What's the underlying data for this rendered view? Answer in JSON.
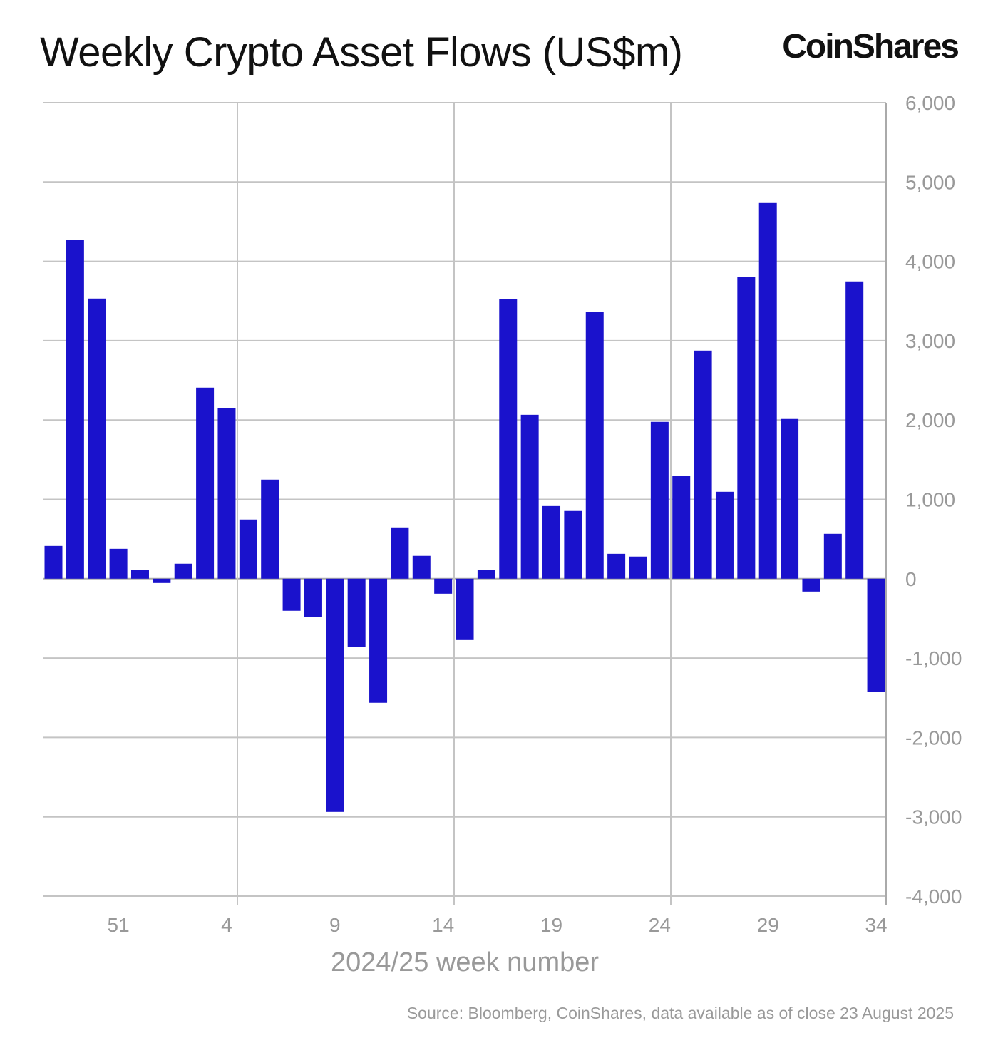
{
  "chart_data": {
    "type": "bar",
    "title": "Weekly Crypto Asset Flows (US$m)",
    "brand": "CoinShares",
    "source": "Source: Bloomberg, CoinShares, data available as of close 23 August 2025",
    "xlabel": "2024/25 week number",
    "ylabel": "",
    "ylim": [
      -4000,
      6000
    ],
    "yticks": [
      6000,
      5000,
      4000,
      3000,
      2000,
      1000,
      0,
      -1000,
      -2000,
      -3000,
      -4000
    ],
    "ytick_labels": [
      "6,000",
      "5,000",
      "4,000",
      "3,000",
      "2,000",
      "1,000",
      "0",
      "-1,000",
      "-2,000",
      "-3,000",
      "-4,000"
    ],
    "xtick_labels": [
      "51",
      "4",
      "9",
      "14",
      "19",
      "24",
      "29",
      "34"
    ],
    "y_axis_position": "right",
    "grid": true,
    "bar_color": "#1a12cc",
    "categories": [
      "48",
      "49",
      "50",
      "51",
      "52",
      "1",
      "2",
      "3",
      "4",
      "5",
      "6",
      "7",
      "8",
      "9",
      "10",
      "11",
      "12",
      "13",
      "14",
      "15",
      "16",
      "17",
      "18",
      "19",
      "20",
      "21",
      "22",
      "23",
      "24",
      "25",
      "26",
      "27",
      "28",
      "29",
      "30",
      "31",
      "32",
      "33",
      "34"
    ],
    "values": [
      413,
      4268,
      3531,
      377,
      108,
      -54,
      189,
      2408,
      2147,
      746,
      1249,
      -404,
      -485,
      -2938,
      -863,
      -1563,
      647,
      288,
      -189,
      -773,
      108,
      3522,
      2066,
      916,
      854,
      3360,
      314,
      279,
      1977,
      1294,
      2875,
      1096,
      3800,
      4735,
      2013,
      -162,
      566,
      3747,
      -1429
    ]
  }
}
